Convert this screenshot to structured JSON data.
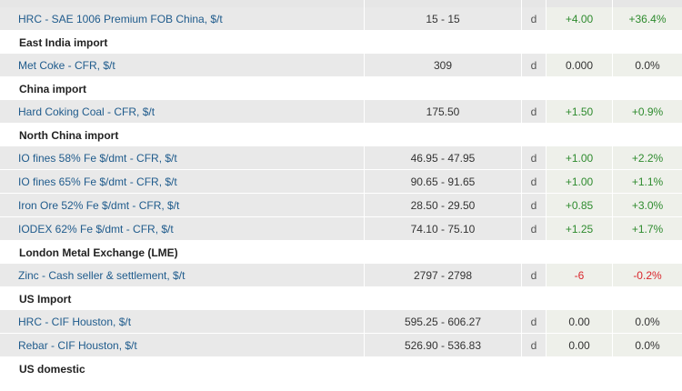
{
  "rows": [
    {
      "type": "item",
      "name": "HRC - SAE 1006 Premium FOB China, $/t",
      "price": "15 - 15",
      "unit": "d",
      "change": "+4.00",
      "pct": "+36.4%",
      "trend": "pos"
    },
    {
      "type": "section",
      "title": "East India import"
    },
    {
      "type": "item",
      "name": "Met Coke - CFR, $/t",
      "price": "309",
      "unit": "d",
      "change": "0.000",
      "pct": "0.0%",
      "trend": "flat"
    },
    {
      "type": "section",
      "title": "China import"
    },
    {
      "type": "item",
      "name": "Hard Coking Coal - CFR, $/t",
      "price": "175.50",
      "unit": "d",
      "change": "+1.50",
      "pct": "+0.9%",
      "trend": "pos"
    },
    {
      "type": "section",
      "title": "North China import"
    },
    {
      "type": "item",
      "name": "IO fines 58% Fe $/dmt - CFR, $/t",
      "price": "46.95 - 47.95",
      "unit": "d",
      "change": "+1.00",
      "pct": "+2.2%",
      "trend": "pos"
    },
    {
      "type": "item",
      "name": "IO fines 65% Fe $/dmt - CFR, $/t",
      "price": "90.65 - 91.65",
      "unit": "d",
      "change": "+1.00",
      "pct": "+1.1%",
      "trend": "pos"
    },
    {
      "type": "item",
      "name": "Iron Ore 52% Fe $/dmt - CFR, $/t",
      "price": "28.50 - 29.50",
      "unit": "d",
      "change": "+0.85",
      "pct": "+3.0%",
      "trend": "pos"
    },
    {
      "type": "item",
      "name": "IODEX 62% Fe $/dmt - CFR, $/t",
      "price": "74.10 - 75.10",
      "unit": "d",
      "change": "+1.25",
      "pct": "+1.7%",
      "trend": "pos"
    },
    {
      "type": "section",
      "title": "London Metal Exchange (LME)"
    },
    {
      "type": "item",
      "name": "Zinc - Cash seller & settlement, $/t",
      "price": "2797 - 2798",
      "unit": "d",
      "change": "-6",
      "pct": "-0.2%",
      "trend": "neg"
    },
    {
      "type": "section",
      "title": "US Import"
    },
    {
      "type": "item",
      "name": "HRC - CIF Houston, $/t",
      "price": "595.25 - 606.27",
      "unit": "d",
      "change": "0.00",
      "pct": "0.0%",
      "trend": "flat"
    },
    {
      "type": "item",
      "name": "Rebar - CIF Houston, $/t",
      "price": "526.90 - 536.83",
      "unit": "d",
      "change": "0.00",
      "pct": "0.0%",
      "trend": "flat"
    },
    {
      "type": "section",
      "title": "US domestic"
    }
  ]
}
